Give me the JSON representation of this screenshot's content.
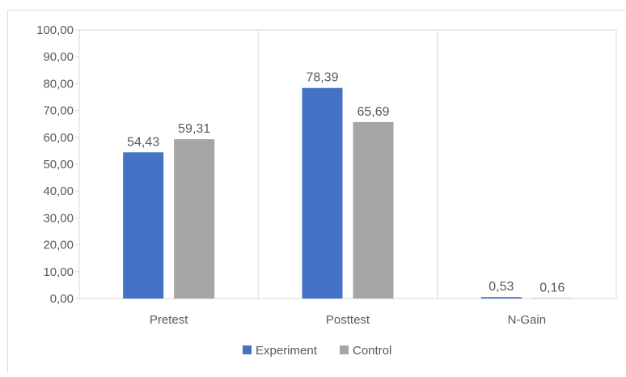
{
  "chart_data": {
    "type": "bar",
    "categories": [
      "Pretest",
      "Posttest",
      "N-Gain"
    ],
    "series": [
      {
        "name": "Experiment",
        "values": [
          54.43,
          78.39,
          0.53
        ],
        "color": "#4472C4"
      },
      {
        "name": "Control",
        "values": [
          59.31,
          65.69,
          0.16
        ],
        "color": "#A5A5A5"
      }
    ],
    "data_labels": [
      [
        "54,43",
        "78,39",
        "0,53"
      ],
      [
        "59,31",
        "65,69",
        "0,16"
      ]
    ],
    "y_ticks": [
      "0,00",
      "10,00",
      "20,00",
      "30,00",
      "40,00",
      "50,00",
      "60,00",
      "70,00",
      "80,00",
      "90,00",
      "100,00"
    ],
    "ylim": [
      0,
      100
    ],
    "grid": "vertical category separators",
    "legend_position": "bottom",
    "title": "",
    "xlabel": "",
    "ylabel": ""
  }
}
